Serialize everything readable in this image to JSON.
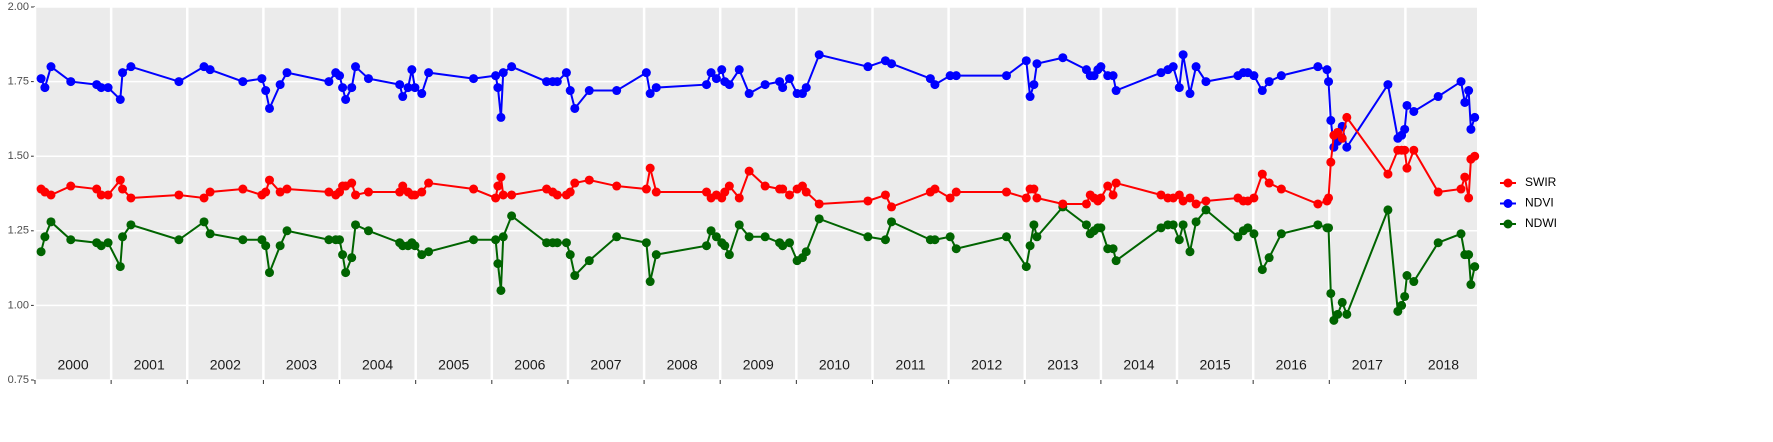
{
  "chart_data": {
    "type": "line",
    "x": [
      2000.08,
      2000.13,
      2000.21,
      2000.47,
      2000.81,
      2000.87,
      2000.96,
      2001.12,
      2001.15,
      2001.26,
      2001.89,
      2002.22,
      2002.3,
      2002.73,
      2002.98,
      2003.03,
      2003.08,
      2003.22,
      2003.31,
      2003.86,
      2003.95,
      2004.0,
      2004.04,
      2004.08,
      2004.16,
      2004.21,
      2004.38,
      2004.79,
      2004.83,
      2004.9,
      2004.95,
      2004.99,
      2005.08,
      2005.17,
      2005.76,
      2006.05,
      2006.08,
      2006.12,
      2006.15,
      2006.26,
      2006.72,
      2006.8,
      2006.86,
      2006.98,
      2007.03,
      2007.09,
      2007.28,
      2007.64,
      2008.03,
      2008.08,
      2008.16,
      2008.82,
      2008.88,
      2008.95,
      2009.02,
      2009.06,
      2009.12,
      2009.25,
      2009.38,
      2009.59,
      2009.78,
      2009.82,
      2009.91,
      2010.01,
      2010.08,
      2010.13,
      2010.3,
      2010.94,
      2011.17,
      2011.25,
      2011.76,
      2011.82,
      2012.02,
      2012.1,
      2012.76,
      2013.02,
      2013.07,
      2013.12,
      2013.16,
      2013.5,
      2013.81,
      2013.86,
      2013.91,
      2013.96,
      2014.0,
      2014.09,
      2014.16,
      2014.2,
      2014.79,
      2014.88,
      2014.95,
      2015.03,
      2015.08,
      2015.17,
      2015.25,
      2015.38,
      2015.8,
      2015.87,
      2015.93,
      2016.01,
      2016.12,
      2016.21,
      2016.37,
      2016.85,
      2016.97,
      2016.99,
      2017.02,
      2017.06,
      2017.11,
      2017.17,
      2017.23,
      2017.77,
      2017.9,
      2017.95,
      2017.99,
      2018.02,
      2018.11,
      2018.43,
      2018.73,
      2018.78,
      2018.83,
      2018.86,
      2018.91
    ],
    "series": [
      {
        "name": "SWIR",
        "color": "#ff0000",
        "values": [
          1.39,
          1.38,
          1.37,
          1.4,
          1.39,
          1.37,
          1.37,
          1.42,
          1.39,
          1.36,
          1.37,
          1.36,
          1.38,
          1.39,
          1.37,
          1.38,
          1.42,
          1.38,
          1.39,
          1.38,
          1.37,
          1.38,
          1.4,
          1.4,
          1.41,
          1.37,
          1.38,
          1.38,
          1.4,
          1.38,
          1.37,
          1.37,
          1.38,
          1.41,
          1.39,
          1.36,
          1.4,
          1.43,
          1.37,
          1.37,
          1.39,
          1.38,
          1.37,
          1.37,
          1.38,
          1.41,
          1.42,
          1.4,
          1.39,
          1.46,
          1.38,
          1.38,
          1.36,
          1.37,
          1.36,
          1.38,
          1.4,
          1.36,
          1.45,
          1.4,
          1.39,
          1.39,
          1.37,
          1.39,
          1.4,
          1.38,
          1.34,
          1.35,
          1.37,
          1.33,
          1.38,
          1.39,
          1.36,
          1.38,
          1.38,
          1.36,
          1.39,
          1.39,
          1.36,
          1.34,
          1.34,
          1.37,
          1.36,
          1.35,
          1.36,
          1.4,
          1.37,
          1.41,
          1.37,
          1.36,
          1.36,
          1.37,
          1.35,
          1.36,
          1.34,
          1.35,
          1.36,
          1.35,
          1.35,
          1.36,
          1.44,
          1.41,
          1.39,
          1.34,
          1.35,
          1.36,
          1.48,
          1.57,
          1.58,
          1.56,
          1.63,
          1.44,
          1.52,
          1.52,
          1.52,
          1.46,
          1.52,
          1.38,
          1.39,
          1.43,
          1.36,
          1.49,
          1.5
        ]
      },
      {
        "name": "NDVI",
        "color": "#0000ff",
        "values": [
          1.76,
          1.73,
          1.8,
          1.75,
          1.74,
          1.73,
          1.73,
          1.69,
          1.78,
          1.8,
          1.75,
          1.8,
          1.79,
          1.75,
          1.76,
          1.72,
          1.66,
          1.74,
          1.78,
          1.75,
          1.78,
          1.77,
          1.73,
          1.69,
          1.73,
          1.8,
          1.76,
          1.74,
          1.7,
          1.73,
          1.79,
          1.73,
          1.71,
          1.78,
          1.76,
          1.77,
          1.73,
          1.63,
          1.78,
          1.8,
          1.75,
          1.75,
          1.75,
          1.78,
          1.72,
          1.66,
          1.72,
          1.72,
          1.78,
          1.71,
          1.73,
          1.74,
          1.78,
          1.76,
          1.79,
          1.75,
          1.74,
          1.79,
          1.71,
          1.74,
          1.75,
          1.73,
          1.76,
          1.71,
          1.71,
          1.73,
          1.84,
          1.8,
          1.82,
          1.81,
          1.76,
          1.74,
          1.77,
          1.77,
          1.77,
          1.82,
          1.7,
          1.74,
          1.81,
          1.83,
          1.79,
          1.77,
          1.77,
          1.79,
          1.8,
          1.77,
          1.77,
          1.72,
          1.78,
          1.79,
          1.8,
          1.73,
          1.84,
          1.71,
          1.8,
          1.75,
          1.77,
          1.78,
          1.78,
          1.77,
          1.72,
          1.75,
          1.77,
          1.8,
          1.79,
          1.75,
          1.62,
          1.53,
          1.55,
          1.6,
          1.53,
          1.74,
          1.56,
          1.57,
          1.59,
          1.67,
          1.65,
          1.7,
          1.75,
          1.68,
          1.72,
          1.59,
          1.63
        ]
      },
      {
        "name": "NDWI",
        "color": "#006400",
        "values": [
          1.18,
          1.23,
          1.28,
          1.22,
          1.21,
          1.2,
          1.21,
          1.13,
          1.23,
          1.27,
          1.22,
          1.28,
          1.24,
          1.22,
          1.22,
          1.2,
          1.11,
          1.2,
          1.25,
          1.22,
          1.22,
          1.22,
          1.17,
          1.11,
          1.16,
          1.27,
          1.25,
          1.21,
          1.2,
          1.2,
          1.21,
          1.2,
          1.17,
          1.18,
          1.22,
          1.22,
          1.14,
          1.05,
          1.23,
          1.3,
          1.21,
          1.21,
          1.21,
          1.21,
          1.17,
          1.1,
          1.15,
          1.23,
          1.21,
          1.08,
          1.17,
          1.2,
          1.25,
          1.23,
          1.21,
          1.2,
          1.17,
          1.27,
          1.23,
          1.23,
          1.21,
          1.2,
          1.21,
          1.15,
          1.16,
          1.18,
          1.29,
          1.23,
          1.22,
          1.28,
          1.22,
          1.22,
          1.23,
          1.19,
          1.23,
          1.13,
          1.2,
          1.27,
          1.23,
          1.33,
          1.27,
          1.24,
          1.25,
          1.26,
          1.26,
          1.19,
          1.19,
          1.15,
          1.26,
          1.27,
          1.27,
          1.22,
          1.27,
          1.18,
          1.28,
          1.32,
          1.23,
          1.25,
          1.26,
          1.24,
          1.12,
          1.16,
          1.24,
          1.27,
          1.26,
          1.26,
          1.04,
          0.95,
          0.97,
          1.01,
          0.97,
          1.32,
          0.98,
          1.0,
          1.03,
          1.1,
          1.08,
          1.21,
          1.24,
          1.17,
          1.17,
          1.07,
          1.13
        ]
      }
    ],
    "xlim": [
      2000,
      2018.94
    ],
    "xticks": [
      2000,
      2001,
      2002,
      2003,
      2004,
      2005,
      2006,
      2007,
      2008,
      2009,
      2010,
      2011,
      2012,
      2013,
      2014,
      2015,
      2016,
      2017,
      2018
    ],
    "ylim": [
      0.75,
      2.0
    ],
    "yticks": [
      {
        "value": 0.75,
        "label": "0.75"
      },
      {
        "value": 1.0,
        "label": "1.00"
      },
      {
        "value": 1.25,
        "label": "1.25"
      },
      {
        "value": 1.5,
        "label": "1.50"
      },
      {
        "value": 1.75,
        "label": "1.75"
      },
      {
        "value": 2.0,
        "label": "2.00"
      }
    ],
    "grid": true,
    "legend": "right"
  }
}
